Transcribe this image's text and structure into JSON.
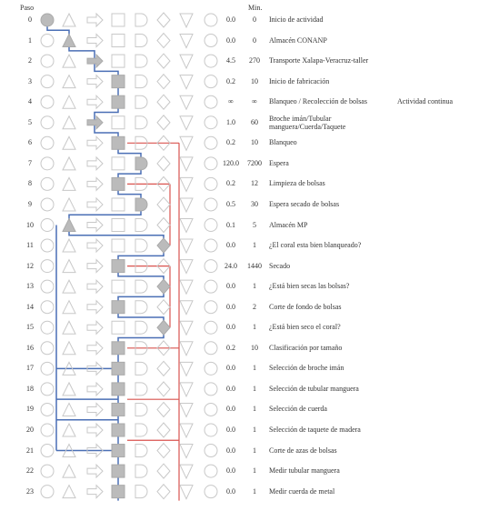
{
  "header": {
    "step": "Paso",
    "minutes": "Min."
  },
  "rows": [
    {
      "step": "0",
      "hours": "0.0",
      "minutes": "0",
      "description": "Inicio de actividad"
    },
    {
      "step": "1",
      "hours": "0.0",
      "minutes": "0",
      "description": "Almacén CONANP"
    },
    {
      "step": "2",
      "hours": "4.5",
      "minutes": "270",
      "description": "Transporte Xalapa-Veracruz-taller"
    },
    {
      "step": "3",
      "hours": "0.2",
      "minutes": "10",
      "description": "Inicio de fabricación"
    },
    {
      "step": "4",
      "hours": "∞",
      "minutes": "∞",
      "description": "Blanqueo / Recolección de bolsas",
      "note": "Actividad continua"
    },
    {
      "step": "5",
      "hours": "1.0",
      "minutes": "60",
      "description": "Broche imán/Tubular manguera/Cuerda/Taquete"
    },
    {
      "step": "6",
      "hours": "0.2",
      "minutes": "10",
      "description": "Blanqueo"
    },
    {
      "step": "7",
      "hours": "120.0",
      "minutes": "7200",
      "description": "Espera"
    },
    {
      "step": "8",
      "hours": "0.2",
      "minutes": "12",
      "description": "Limpieza de bolsas"
    },
    {
      "step": "9",
      "hours": "0.5",
      "minutes": "30",
      "description": "Espera secado de bolsas"
    },
    {
      "step": "10",
      "hours": "0.1",
      "minutes": "5",
      "description": "Almacén MP"
    },
    {
      "step": "11",
      "hours": "0.0",
      "minutes": "1",
      "description": "¿El coral esta bien blanqueado?"
    },
    {
      "step": "12",
      "hours": "24.0",
      "minutes": "1440",
      "description": "Secado"
    },
    {
      "step": "13",
      "hours": "0.0",
      "minutes": "1",
      "description": "¿Está bien secas las bolsas?"
    },
    {
      "step": "14",
      "hours": "0.0",
      "minutes": "2",
      "description": "Corte de fondo de bolsas"
    },
    {
      "step": "15",
      "hours": "0.0",
      "minutes": "1",
      "description": "¿Está bien seco el coral?"
    },
    {
      "step": "16",
      "hours": "0.2",
      "minutes": "10",
      "description": "Clasificación por tamaño"
    },
    {
      "step": "17",
      "hours": "0.0",
      "minutes": "1",
      "description": "Selección de broche imán"
    },
    {
      "step": "18",
      "hours": "0.0",
      "minutes": "1",
      "description": "Selección de tubular manguera"
    },
    {
      "step": "19",
      "hours": "0.0",
      "minutes": "1",
      "description": "Selección de cuerda"
    },
    {
      "step": "20",
      "hours": "0.0",
      "minutes": "1",
      "description": "Selección de taquete de madera"
    },
    {
      "step": "21",
      "hours": "0.0",
      "minutes": "1",
      "description": "Corte de azas de bolsas"
    },
    {
      "step": "22",
      "hours": "0.0",
      "minutes": "1",
      "description": "Medir tubular manguera"
    },
    {
      "step": "23",
      "hours": "0.0",
      "minutes": "1",
      "description": "Medir cuerda de metal"
    }
  ]
}
